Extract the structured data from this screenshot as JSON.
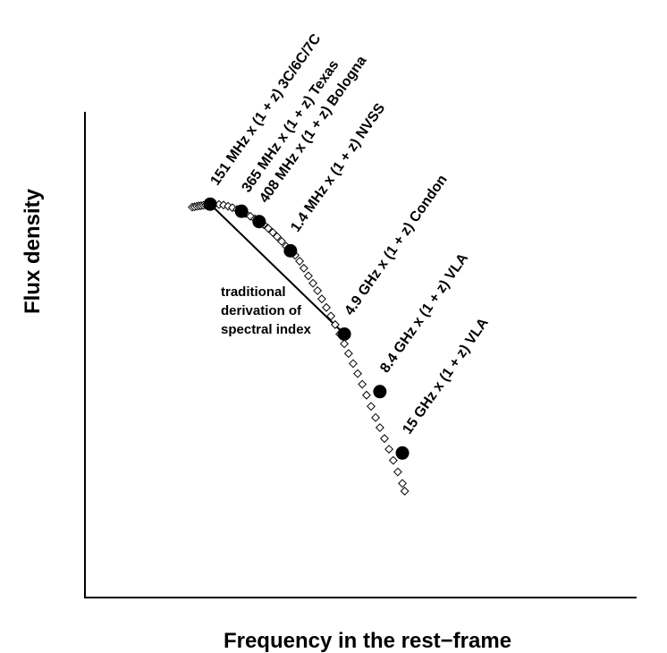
{
  "chart_data": {
    "type": "scatter",
    "title": "",
    "xlabel": "Frequency in the rest−frame",
    "ylabel": "Flux density",
    "x_ticks_shown": false,
    "y_ticks_shown": false,
    "grid": false,
    "axis_units": "arbitrary",
    "model_curve": {
      "marker": "open-diamond",
      "points": [
        [
          0.0,
          0.962
        ],
        [
          0.007,
          0.963
        ],
        [
          0.014,
          0.965
        ],
        [
          0.021,
          0.966
        ],
        [
          0.027,
          0.967
        ],
        [
          0.034,
          0.968
        ],
        [
          0.041,
          0.969
        ],
        [
          0.055,
          0.972
        ],
        [
          0.068,
          0.972
        ],
        [
          0.082,
          0.971
        ],
        [
          0.096,
          0.969
        ],
        [
          0.11,
          0.965
        ],
        [
          0.123,
          0.96
        ],
        [
          0.137,
          0.954
        ],
        [
          0.151,
          0.948
        ],
        [
          0.164,
          0.94
        ],
        [
          0.178,
          0.931
        ],
        [
          0.192,
          0.922
        ],
        [
          0.205,
          0.913
        ],
        [
          0.219,
          0.903
        ],
        [
          0.233,
          0.89
        ],
        [
          0.247,
          0.876
        ],
        [
          0.26,
          0.862
        ],
        [
          0.274,
          0.846
        ],
        [
          0.288,
          0.829
        ],
        [
          0.301,
          0.814
        ],
        [
          0.315,
          0.799
        ],
        [
          0.329,
          0.779
        ],
        [
          0.342,
          0.755
        ],
        [
          0.356,
          0.729
        ],
        [
          0.37,
          0.704
        ],
        [
          0.384,
          0.679
        ],
        [
          0.397,
          0.651
        ],
        [
          0.411,
          0.622
        ],
        [
          0.425,
          0.593
        ],
        [
          0.438,
          0.564
        ],
        [
          0.452,
          0.532
        ],
        [
          0.466,
          0.499
        ],
        [
          0.479,
          0.466
        ],
        [
          0.493,
          0.432
        ],
        [
          0.507,
          0.398
        ],
        [
          0.521,
          0.362
        ],
        [
          0.534,
          0.325
        ],
        [
          0.548,
          0.287
        ],
        [
          0.562,
          0.249
        ],
        [
          0.575,
          0.215
        ],
        [
          0.589,
          0.178
        ],
        [
          0.603,
          0.142
        ],
        [
          0.616,
          0.104
        ],
        [
          0.63,
          0.065
        ],
        [
          0.644,
          0.026
        ],
        [
          0.651,
          0.0
        ]
      ]
    },
    "observations": {
      "marker": "filled-circle",
      "points": [
        {
          "x": 0.055,
          "y": 0.972,
          "label": "151 MHz x (1 + z)  3C/6C/7C"
        },
        {
          "x": 0.151,
          "y": 0.948,
          "label": "365 MHz x (1 + z)  Texas"
        },
        {
          "x": 0.205,
          "y": 0.913,
          "label": "408 MHz x (1 + z)  Bologna"
        },
        {
          "x": 0.301,
          "y": 0.814,
          "label": "1.4 MHz x (1 + z)  NVSS"
        },
        {
          "x": 0.466,
          "y": 0.532,
          "label": "4.9 GHz x (1 + z)  Condon"
        },
        {
          "x": 0.575,
          "y": 0.337,
          "label": "8.4 GHz x (1 + z)  VLA"
        },
        {
          "x": 0.644,
          "y": 0.129,
          "label": "15 GHz x (1 + z)  VLA"
        }
      ]
    },
    "traditional_line": {
      "from_observation": 0,
      "to_observation": 4,
      "annotation": [
        "traditional",
        "derivation of",
        "spectral index"
      ]
    }
  }
}
